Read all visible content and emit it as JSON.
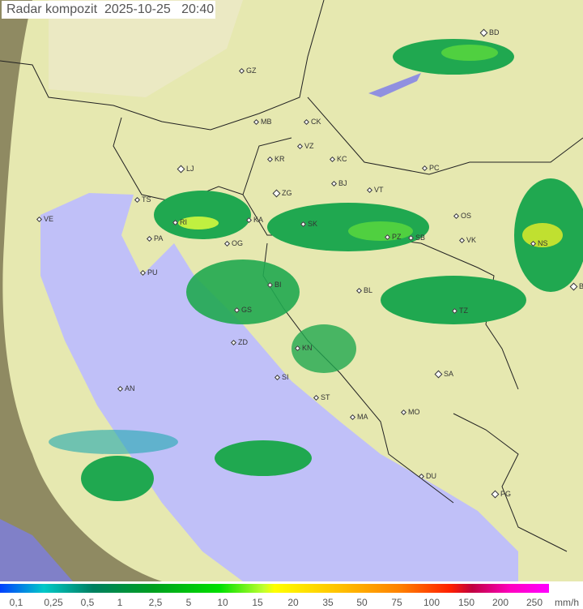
{
  "header": {
    "title": "Radar kompozit",
    "date": "2025-10-25",
    "time": "20:40"
  },
  "cities": [
    "BD",
    "GZ",
    "MB",
    "CK",
    "VZ",
    "KC",
    "KR",
    "LJ",
    "PC",
    "BJ",
    "ZG",
    "VT",
    "TS",
    "VE",
    "OS",
    "KA",
    "SK",
    "RI",
    "NS",
    "PZ",
    "SB",
    "VK",
    "PA",
    "OG",
    "PU",
    "BG",
    "BI",
    "BL",
    "GS",
    "TZ",
    "ZD",
    "KN",
    "SA",
    "SI",
    "AN",
    "ST",
    "MO",
    "MA",
    "DU",
    "PG"
  ],
  "legend": {
    "ticks": [
      "0,1",
      "0,25",
      "0,5",
      "1",
      "2,5",
      "5",
      "10",
      "15",
      "20",
      "35",
      "50",
      "75",
      "100",
      "150",
      "200",
      "250"
    ],
    "unit": "mm/h"
  },
  "colors": {
    "sea": "#c0c0f8",
    "land": "#e6e8b0",
    "outside": "#8f8a62"
  }
}
